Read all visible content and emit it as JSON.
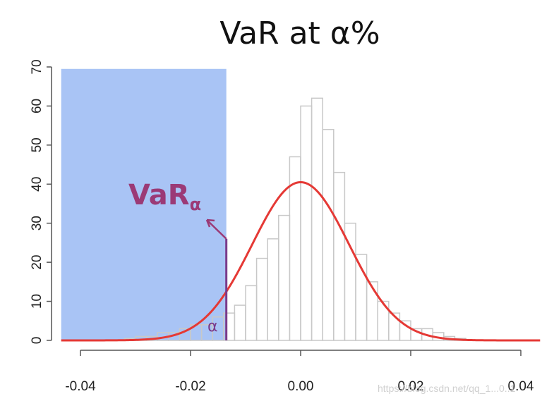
{
  "colors": {
    "shaded_region": "#a9c4f5",
    "histogram_fill": "#ffffff",
    "histogram_stroke": "#c8c8c8",
    "density_curve": "#e53935",
    "annotation": "#9b3a76",
    "var_line": "#7a3a8a"
  },
  "chart_data": {
    "type": "bar",
    "title": "VaR at α%",
    "xlabel": "",
    "ylabel": "",
    "xlim": [
      -0.0435,
      0.0435
    ],
    "ylim": [
      0,
      70
    ],
    "x_ticks": [
      -0.04,
      -0.02,
      0.0,
      0.02,
      0.04
    ],
    "x_tick_labels": [
      "-0.04",
      "-0.02",
      "0.00",
      "0.02",
      "0.04"
    ],
    "y_ticks": [
      0,
      10,
      20,
      30,
      40,
      50,
      60,
      70
    ],
    "y_tick_labels": [
      "0",
      "10",
      "20",
      "30",
      "40",
      "50",
      "60",
      "70"
    ],
    "histogram": {
      "bin_width": 0.002,
      "bin_starts": [
        -0.032,
        -0.03,
        -0.028,
        -0.026,
        -0.024,
        -0.022,
        -0.02,
        -0.018,
        -0.016,
        -0.014,
        -0.012,
        -0.01,
        -0.008,
        -0.006,
        -0.004,
        -0.002,
        0.0,
        0.002,
        0.004,
        0.006,
        0.008,
        0.01,
        0.012,
        0.014,
        0.016,
        0.018,
        0.02,
        0.022,
        0.024,
        0.026,
        0.028
      ],
      "counts": [
        0.5,
        1,
        1,
        2,
        2,
        3,
        4,
        4,
        6,
        7,
        9,
        14,
        21,
        26,
        32,
        47,
        60,
        62,
        54,
        43,
        30,
        22,
        15,
        10,
        7,
        5,
        3,
        3,
        2,
        1,
        0.5
      ]
    },
    "density_curve": {
      "name": "normal density",
      "mean": 0.0,
      "peak": 40.5,
      "sd": 0.0088,
      "x_range": [
        -0.0435,
        0.0435
      ]
    },
    "shaded_region": {
      "x_from": -0.0435,
      "x_to": -0.0135,
      "y_to": 69.5
    },
    "var_line": {
      "x": -0.0135,
      "y_top": 26
    },
    "annotations": {
      "var_label": "VaR",
      "var_subscript": "α",
      "alpha_label": "α"
    },
    "watermark": "https://blog.csdn.net/qq_1...0..1"
  }
}
